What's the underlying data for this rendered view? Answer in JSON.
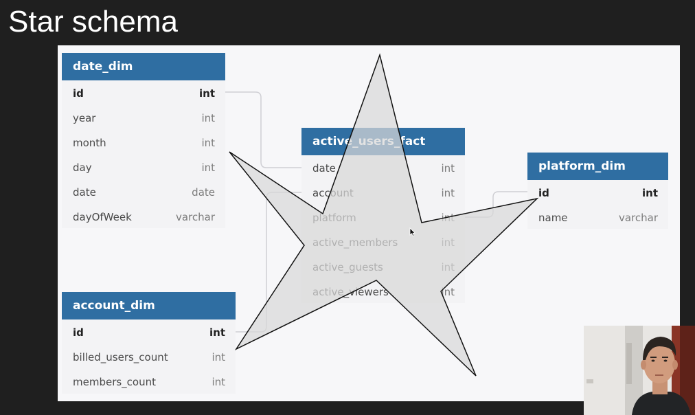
{
  "slide": {
    "title": "Star schema"
  },
  "tables": {
    "date_dim": {
      "name": "date_dim",
      "columns": [
        {
          "name": "id",
          "type": "int",
          "pk": true
        },
        {
          "name": "year",
          "type": "int"
        },
        {
          "name": "month",
          "type": "int"
        },
        {
          "name": "day",
          "type": "int"
        },
        {
          "name": "date",
          "type": "date"
        },
        {
          "name": "dayOfWeek",
          "type": "varchar"
        }
      ]
    },
    "active_users_fact": {
      "name": "active_users_fact",
      "columns": [
        {
          "name": "date",
          "type": "int"
        },
        {
          "name": "account",
          "type": "int"
        },
        {
          "name": "platform",
          "type": "int"
        },
        {
          "name": "active_members",
          "type": "int"
        },
        {
          "name": "active_guests",
          "type": "int"
        },
        {
          "name": "active_viewers",
          "type": "int"
        }
      ]
    },
    "platform_dim": {
      "name": "platform_dim",
      "columns": [
        {
          "name": "id",
          "type": "int",
          "pk": true
        },
        {
          "name": "name",
          "type": "varchar"
        }
      ]
    },
    "account_dim": {
      "name": "account_dim",
      "columns": [
        {
          "name": "id",
          "type": "int",
          "pk": true
        },
        {
          "name": "billed_users_count",
          "type": "int"
        },
        {
          "name": "members_count",
          "type": "int"
        }
      ]
    }
  },
  "colors": {
    "header_bg": "#2f6ea2",
    "star_fill": "#d8d8d8",
    "connector": "#cfcfd4"
  },
  "icons": [
    "mouse-cursor-icon"
  ]
}
